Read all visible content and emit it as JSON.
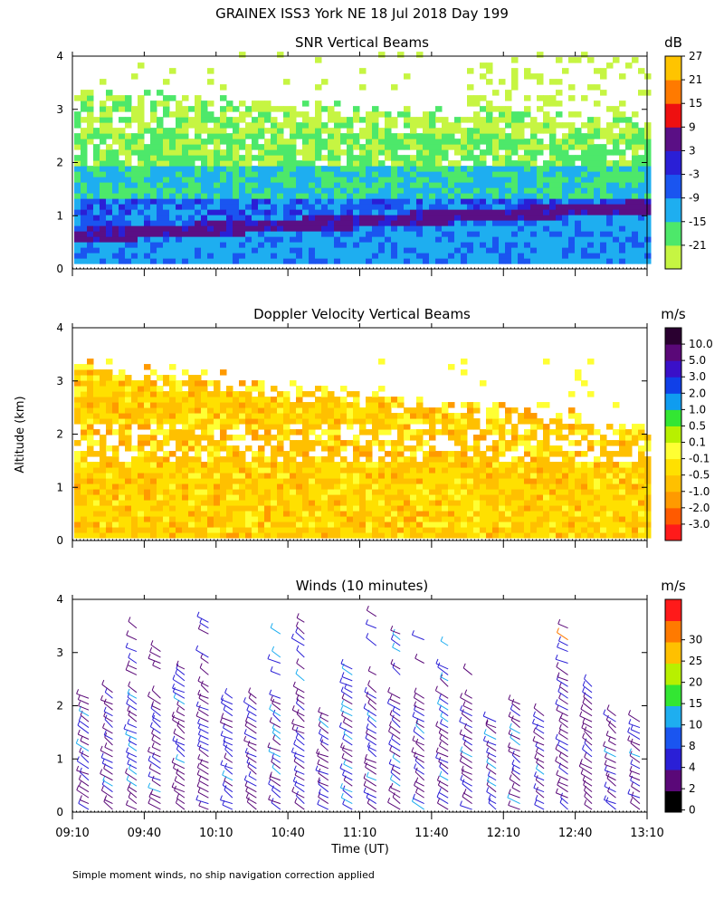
{
  "title": "GRAINEX ISS3 York NE  18 Jul 2018 Day 199",
  "ylabel": "Altitude (km)",
  "footnote": "Simple moment winds, no ship navigation correction applied",
  "chart_data": [
    {
      "type": "heatmap",
      "title": "SNR Vertical Beams",
      "unit": "dB",
      "ylim": [
        0,
        4
      ],
      "yticks": [
        "0",
        "1",
        "2",
        "3",
        "4"
      ],
      "xlabel": "",
      "colorbar": {
        "labels": [
          "-21",
          "-15",
          "-9",
          "-3",
          "3",
          "9",
          "15",
          "21",
          "27"
        ],
        "colors": [
          "#c6f542",
          "#4de86a",
          "#1eaef0",
          "#1a55f0",
          "#2a1fd6",
          "#5a0f85",
          "#ee1010",
          "#ff7a00",
          "#ffc400"
        ]
      },
      "layers": [
        {
          "range": [
            0.05,
            0.4
          ],
          "level": "-9"
        },
        {
          "range": [
            0.4,
            0.75
          ],
          "level": "9"
        },
        {
          "range": [
            0.75,
            1.4
          ],
          "level": "-3"
        },
        {
          "range": [
            1.4,
            1.9
          ],
          "level": "-9"
        },
        {
          "range": [
            1.9,
            2.6
          ],
          "level": "-15"
        },
        {
          "range": [
            2.6,
            3.3
          ],
          "level": "-21"
        }
      ]
    },
    {
      "type": "heatmap",
      "title": "Doppler Velocity Vertical Beams",
      "unit": "m/s",
      "ylim": [
        0,
        4
      ],
      "yticks": [
        "0",
        "1",
        "2",
        "3",
        "4"
      ],
      "colorbar": {
        "labels": [
          "-3.0",
          "-2.0",
          "-1.0",
          "-0.5",
          "-0.1",
          "0.1",
          "0.5",
          "1.0",
          "2.0",
          "3.0",
          "5.0",
          "10.0"
        ],
        "colors": [
          "#ff1a1a",
          "#ff5a00",
          "#ff9a00",
          "#ffc000",
          "#ffe000",
          "#ffff33",
          "#b8f000",
          "#33e633",
          "#0f9cf0",
          "#1040e8",
          "#3a10c8",
          "#5a0878",
          "#2a0030"
        ]
      }
    },
    {
      "type": "barbs",
      "title": "Winds (10 minutes)",
      "unit": "m/s",
      "ylim": [
        0,
        4
      ],
      "yticks": [
        "0",
        "1",
        "2",
        "3",
        "4"
      ],
      "xlabel": "Time (UT)",
      "xticks": [
        "09:10",
        "09:40",
        "10:10",
        "10:40",
        "11:10",
        "11:40",
        "12:10",
        "12:40",
        "13:10"
      ],
      "colorbar": {
        "labels": [
          "0",
          "2",
          "4",
          "8",
          "10",
          "15",
          "20",
          "25",
          "30"
        ],
        "colors": [
          "#000000",
          "#5a0878",
          "#2a1fd6",
          "#1a55f0",
          "#1eaef0",
          "#33e633",
          "#b8f000",
          "#ffc000",
          "#ff7a00",
          "#ff1a1a"
        ]
      }
    }
  ]
}
